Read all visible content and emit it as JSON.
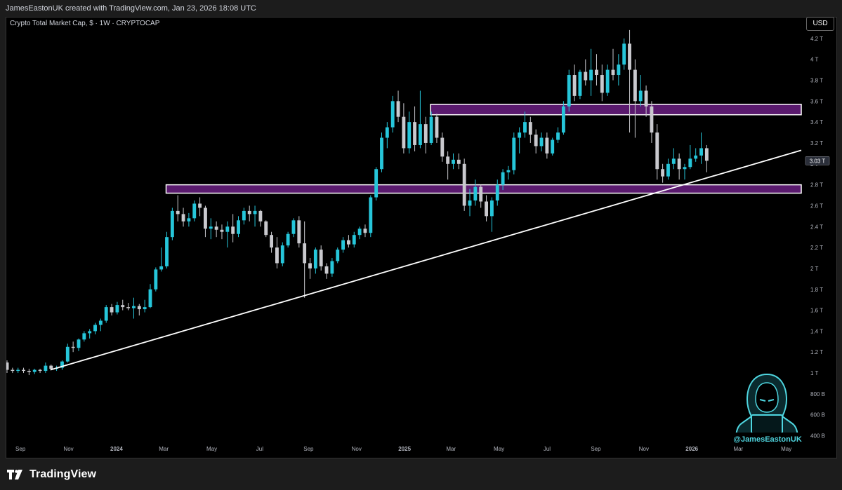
{
  "header": {
    "attribution": "JamesEastonUK created with TradingView.com, Jan 23, 2026 18:08 UTC"
  },
  "legend": {
    "symbol": "Crypto Total Market Cap, $ · 1W · CRYPTOCAP"
  },
  "currency_button": {
    "label": "USD"
  },
  "brand": {
    "name": "TradingView"
  },
  "watermark": {
    "handle": "@JamesEastonUK"
  },
  "colors": {
    "background": "#000000",
    "bull": "#26c6da",
    "bear": "#c9c9ce",
    "zone_fill": "#5a1a6e",
    "zone_stroke": "#ffffff",
    "trendline": "#ffffff"
  },
  "chart_data": {
    "type": "candlestick",
    "title": "Crypto Total Market Cap, $ · 1W · CRYPTOCAP",
    "y_tick_labels": [
      "400 B",
      "600 B",
      "800 B",
      "1 T",
      "1.2 T",
      "1.4 T",
      "1.6 T",
      "1.8 T",
      "2 T",
      "2.2 T",
      "2.4 T",
      "2.6 T",
      "2.8 T",
      "3 T",
      "3.2 T",
      "3.4 T",
      "3.6 T",
      "3.8 T",
      "4 T",
      "4.2 T"
    ],
    "y_tick_values": [
      0.4,
      0.6,
      0.8,
      1.0,
      1.2,
      1.4,
      1.6,
      1.8,
      2.0,
      2.2,
      2.4,
      2.6,
      2.8,
      3.0,
      3.2,
      3.4,
      3.6,
      3.8,
      4.0,
      4.2
    ],
    "ylim": [
      0.35,
      4.4
    ],
    "x_tick_labels": [
      "Sep",
      "Nov",
      "2024",
      "Mar",
      "May",
      "Jul",
      "Sep",
      "Nov",
      "2025",
      "Mar",
      "May",
      "Jul",
      "Sep",
      "Nov",
      "2026",
      "Mar",
      "May"
    ],
    "x_tick_dates": [
      "2023-09-01",
      "2023-11-01",
      "2024-01-01",
      "2024-03-01",
      "2024-05-01",
      "2024-07-01",
      "2024-09-01",
      "2024-11-01",
      "2025-01-01",
      "2025-03-01",
      "2025-05-01",
      "2025-07-01",
      "2025-09-01",
      "2025-11-01",
      "2026-01-01",
      "2026-03-01",
      "2026-05-01"
    ],
    "xlim": [
      "2023-08-14",
      "2026-05-20"
    ],
    "last_price_label": "3.03 T",
    "last_price": 3.03,
    "series": [
      {
        "candles_start": "2023-08-14",
        "interval_days": 7,
        "ohlc": [
          [
            1.1,
            1.12,
            1.0,
            1.03
          ],
          [
            1.03,
            1.05,
            1.0,
            1.02
          ],
          [
            1.02,
            1.05,
            1.0,
            1.03
          ],
          [
            1.03,
            1.05,
            1.0,
            1.02
          ],
          [
            1.02,
            1.04,
            0.98,
            1.01
          ],
          [
            1.01,
            1.04,
            0.99,
            1.03
          ],
          [
            1.03,
            1.04,
            1.0,
            1.02
          ],
          [
            1.02,
            1.1,
            1.0,
            1.07
          ],
          [
            1.07,
            1.08,
            1.03,
            1.04
          ],
          [
            1.04,
            1.07,
            1.02,
            1.05
          ],
          [
            1.05,
            1.12,
            1.03,
            1.11
          ],
          [
            1.11,
            1.28,
            1.1,
            1.25
          ],
          [
            1.25,
            1.3,
            1.2,
            1.24
          ],
          [
            1.24,
            1.33,
            1.21,
            1.32
          ],
          [
            1.32,
            1.4,
            1.3,
            1.38
          ],
          [
            1.38,
            1.42,
            1.33,
            1.4
          ],
          [
            1.4,
            1.48,
            1.37,
            1.46
          ],
          [
            1.46,
            1.52,
            1.4,
            1.5
          ],
          [
            1.5,
            1.65,
            1.48,
            1.63
          ],
          [
            1.63,
            1.66,
            1.55,
            1.58
          ],
          [
            1.58,
            1.68,
            1.56,
            1.65
          ],
          [
            1.65,
            1.7,
            1.6,
            1.63
          ],
          [
            1.63,
            1.67,
            1.6,
            1.62
          ],
          [
            1.62,
            1.72,
            1.52,
            1.64
          ],
          [
            1.64,
            1.66,
            1.55,
            1.61
          ],
          [
            1.61,
            1.7,
            1.58,
            1.63
          ],
          [
            1.63,
            1.85,
            1.62,
            1.8
          ],
          [
            1.8,
            2.01,
            1.78,
            1.99
          ],
          [
            1.99,
            2.2,
            1.97,
            2.02
          ],
          [
            2.02,
            2.35,
            2.0,
            2.3
          ],
          [
            2.3,
            2.58,
            2.27,
            2.55
          ],
          [
            2.55,
            2.7,
            2.45,
            2.52
          ],
          [
            2.52,
            2.58,
            2.4,
            2.45
          ],
          [
            2.45,
            2.53,
            2.4,
            2.48
          ],
          [
            2.48,
            2.65,
            2.45,
            2.62
          ],
          [
            2.62,
            2.68,
            2.5,
            2.58
          ],
          [
            2.58,
            2.6,
            2.3,
            2.38
          ],
          [
            2.38,
            2.48,
            2.28,
            2.4
          ],
          [
            2.4,
            2.45,
            2.3,
            2.37
          ],
          [
            2.37,
            2.42,
            2.28,
            2.35
          ],
          [
            2.35,
            2.45,
            2.2,
            2.4
          ],
          [
            2.4,
            2.52,
            2.25,
            2.33
          ],
          [
            2.33,
            2.5,
            2.3,
            2.46
          ],
          [
            2.46,
            2.58,
            2.42,
            2.55
          ],
          [
            2.55,
            2.6,
            2.45,
            2.52
          ],
          [
            2.52,
            2.6,
            2.4,
            2.55
          ],
          [
            2.55,
            2.56,
            2.4,
            2.45
          ],
          [
            2.45,
            2.46,
            2.3,
            2.32
          ],
          [
            2.32,
            2.35,
            2.15,
            2.2
          ],
          [
            2.2,
            2.3,
            2.0,
            2.05
          ],
          [
            2.05,
            2.25,
            2.02,
            2.22
          ],
          [
            2.22,
            2.35,
            2.2,
            2.33
          ],
          [
            2.33,
            2.48,
            2.3,
            2.46
          ],
          [
            2.46,
            2.5,
            2.2,
            2.24
          ],
          [
            2.24,
            2.45,
            1.72,
            2.05
          ],
          [
            2.05,
            2.1,
            1.9,
            2.0
          ],
          [
            2.0,
            2.2,
            1.95,
            2.18
          ],
          [
            2.18,
            2.22,
            1.98,
            2.02
          ],
          [
            2.02,
            2.05,
            1.9,
            1.95
          ],
          [
            1.95,
            2.1,
            1.92,
            2.07
          ],
          [
            2.07,
            2.2,
            2.05,
            2.18
          ],
          [
            2.18,
            2.3,
            2.15,
            2.27
          ],
          [
            2.27,
            2.32,
            2.2,
            2.23
          ],
          [
            2.23,
            2.35,
            2.2,
            2.32
          ],
          [
            2.32,
            2.4,
            2.28,
            2.38
          ],
          [
            2.38,
            2.42,
            2.3,
            2.34
          ],
          [
            2.34,
            2.7,
            2.3,
            2.68
          ],
          [
            2.68,
            2.97,
            2.65,
            2.95
          ],
          [
            2.95,
            3.3,
            2.92,
            3.25
          ],
          [
            3.25,
            3.4,
            3.15,
            3.35
          ],
          [
            3.35,
            3.65,
            3.3,
            3.6
          ],
          [
            3.6,
            3.7,
            3.4,
            3.45
          ],
          [
            3.45,
            3.58,
            3.1,
            3.15
          ],
          [
            3.15,
            3.5,
            3.1,
            3.4
          ],
          [
            3.4,
            3.55,
            3.12,
            3.18
          ],
          [
            3.18,
            3.7,
            3.15,
            3.38
          ],
          [
            3.38,
            3.45,
            3.1,
            3.2
          ],
          [
            3.2,
            3.5,
            3.18,
            3.45
          ],
          [
            3.45,
            3.48,
            3.2,
            3.25
          ],
          [
            3.25,
            3.3,
            3.02,
            3.07
          ],
          [
            3.07,
            3.12,
            2.85,
            3.0
          ],
          [
            3.0,
            3.1,
            2.95,
            3.04
          ],
          [
            3.04,
            3.1,
            2.95,
            3.0
          ],
          [
            3.0,
            3.05,
            2.55,
            2.6
          ],
          [
            2.6,
            2.76,
            2.5,
            2.65
          ],
          [
            2.65,
            2.85,
            2.6,
            2.78
          ],
          [
            2.78,
            2.8,
            2.58,
            2.64
          ],
          [
            2.64,
            2.7,
            2.45,
            2.5
          ],
          [
            2.5,
            2.68,
            2.35,
            2.65
          ],
          [
            2.65,
            2.85,
            2.6,
            2.8
          ],
          [
            2.8,
            2.95,
            2.75,
            2.92
          ],
          [
            2.92,
            2.98,
            2.85,
            2.94
          ],
          [
            2.94,
            3.3,
            2.9,
            3.25
          ],
          [
            3.25,
            3.35,
            3.1,
            3.3
          ],
          [
            3.3,
            3.5,
            3.25,
            3.4
          ],
          [
            3.4,
            3.45,
            3.2,
            3.28
          ],
          [
            3.28,
            3.33,
            3.1,
            3.17
          ],
          [
            3.17,
            3.3,
            3.12,
            3.25
          ],
          [
            3.25,
            3.3,
            3.05,
            3.1
          ],
          [
            3.1,
            3.25,
            3.08,
            3.23
          ],
          [
            3.23,
            3.35,
            3.2,
            3.3
          ],
          [
            3.3,
            3.6,
            3.28,
            3.55
          ],
          [
            3.55,
            3.9,
            3.5,
            3.85
          ],
          [
            3.85,
            3.95,
            3.6,
            3.65
          ],
          [
            3.65,
            3.9,
            3.62,
            3.88
          ],
          [
            3.88,
            4.0,
            3.75,
            3.8
          ],
          [
            3.8,
            4.1,
            3.65,
            3.9
          ],
          [
            3.9,
            4.05,
            3.75,
            3.85
          ],
          [
            3.85,
            3.95,
            3.6,
            3.68
          ],
          [
            3.68,
            3.95,
            3.65,
            3.9
          ],
          [
            3.9,
            4.1,
            3.8,
            3.85
          ],
          [
            3.85,
            4.05,
            3.75,
            3.95
          ],
          [
            3.95,
            4.2,
            3.9,
            4.15
          ],
          [
            4.15,
            4.28,
            3.3,
            3.9
          ],
          [
            3.9,
            4.0,
            3.25,
            3.6
          ],
          [
            3.6,
            3.85,
            3.55,
            3.7
          ],
          [
            3.7,
            3.75,
            3.45,
            3.55
          ],
          [
            3.55,
            3.6,
            3.2,
            3.3
          ],
          [
            3.3,
            3.38,
            2.85,
            2.95
          ],
          [
            2.95,
            3.0,
            2.82,
            2.88
          ],
          [
            2.88,
            3.05,
            2.85,
            3.0
          ],
          [
            3.0,
            3.15,
            2.95,
            3.05
          ],
          [
            3.05,
            3.1,
            2.85,
            2.95
          ],
          [
            2.95,
            3.0,
            2.85,
            2.97
          ],
          [
            2.97,
            3.18,
            2.95,
            3.05
          ],
          [
            3.05,
            3.15,
            3.02,
            3.08
          ],
          [
            3.08,
            3.3,
            3.0,
            3.15
          ],
          [
            3.15,
            3.18,
            2.92,
            3.03
          ]
        ]
      }
    ],
    "annotations": [
      {
        "type": "zone",
        "label": "",
        "y_low": 2.72,
        "y_high": 2.8,
        "start": "2024-03-04",
        "end": "2026-05-20"
      },
      {
        "type": "zone",
        "label": "",
        "y_low": 3.47,
        "y_high": 3.57,
        "start": "2025-02-03",
        "end": "2026-05-20"
      },
      {
        "type": "trendline",
        "label": "",
        "start": {
          "date": "2023-10-09",
          "value": 1.03
        },
        "end": {
          "date": "2026-05-20",
          "value": 3.13
        }
      }
    ],
    "grid": false
  }
}
